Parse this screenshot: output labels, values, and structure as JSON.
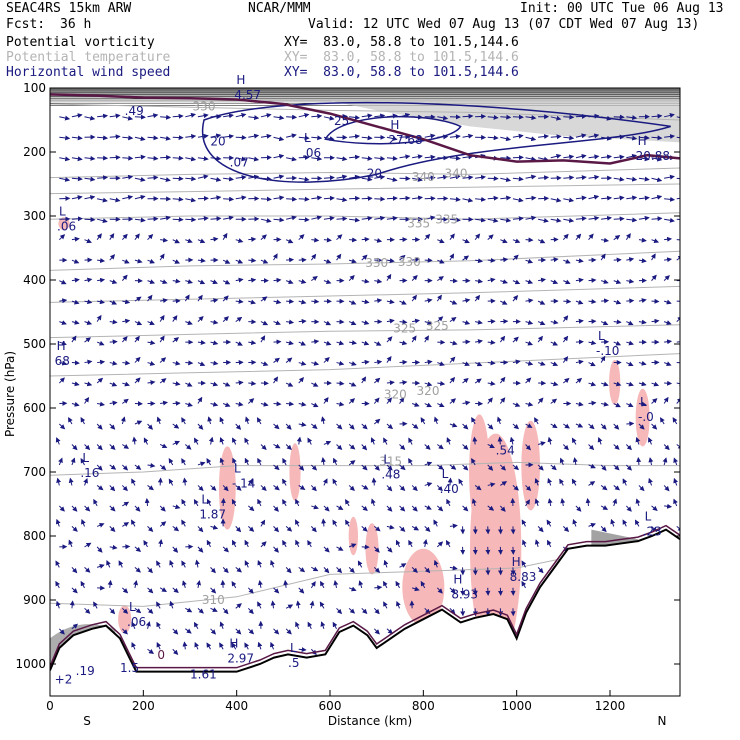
{
  "header": {
    "model": "SEAC4RS 15km ARW",
    "org": "NCAR/MMM",
    "init": "Init: 00 UTC Tue 06 Aug 13",
    "fcst_label": "Fcst:",
    "fcst_value": "36 h",
    "valid": "Valid: 12 UTC Wed 07 Aug 13 (07 CDT Wed 07 Aug 13)"
  },
  "fields": [
    {
      "name": "Potential vorticity",
      "xy": "XY=  83.0, 58.8 to 101.5,144.6",
      "color": "#000000"
    },
    {
      "name": "Potential temperature",
      "xy": "XY=  83.0, 58.8 to 101.5,144.6",
      "color": "#b4b4b4"
    },
    {
      "name": "Horizontal wind speed",
      "xy": "XY=  83.0, 58.8 to 101.5,144.6",
      "color": "#1a1a80"
    }
  ],
  "chart_data": {
    "type": "cross-section",
    "xlabel": "Distance (km)",
    "ylabel": "Pressure (hPa)",
    "xlim": [
      0,
      1350
    ],
    "ylim": [
      1050,
      100
    ],
    "x_ticks": [
      0,
      200,
      400,
      600,
      800,
      1000,
      1200
    ],
    "y_ticks": [
      100,
      200,
      300,
      400,
      500,
      600,
      700,
      800,
      900,
      1000
    ],
    "x_end_labels": [
      "S",
      "N"
    ],
    "theta_contours": [
      {
        "value": "330",
        "x": 330,
        "p": 135
      },
      {
        "value": "340",
        "x": 800,
        "p": 245
      },
      {
        "value": "340",
        "x": 870,
        "p": 240
      },
      {
        "value": "335",
        "x": 790,
        "p": 318
      },
      {
        "value": "335",
        "x": 850,
        "p": 312
      },
      {
        "value": "330",
        "x": 700,
        "p": 380
      },
      {
        "value": "330",
        "x": 770,
        "p": 378
      },
      {
        "value": "325",
        "x": 760,
        "p": 482
      },
      {
        "value": "325",
        "x": 830,
        "p": 478
      },
      {
        "value": "320",
        "x": 740,
        "p": 585
      },
      {
        "value": "320",
        "x": 810,
        "p": 580
      },
      {
        "value": "315",
        "x": 730,
        "p": 690
      },
      {
        "value": "310",
        "x": 350,
        "p": 906
      }
    ],
    "wind_contours": [
      {
        "value": "20",
        "x": 360,
        "p": 190
      },
      {
        "value": "25",
        "x": 625,
        "p": 158
      },
      {
        "value": "20",
        "x": 695,
        "p": 240
      }
    ],
    "extrema": [
      {
        "type": "H",
        "value": "4.57",
        "x": 395,
        "p": 105
      },
      {
        "type": "",
        "value": ".49",
        "x": 160,
        "p": 130
      },
      {
        "type": "L",
        "value": ".06",
        "x": 540,
        "p": 195
      },
      {
        "type": "",
        "value": ".07",
        "x": 385,
        "p": 210
      },
      {
        "type": "H",
        "value": "27.68",
        "x": 725,
        "p": 175
      },
      {
        "type": "H",
        "value": "20.88",
        "x": 1255,
        "p": 200
      },
      {
        "type": "L",
        "value": ".06",
        "x": 15,
        "p": 310
      },
      {
        "type": "H",
        "value": "68",
        "x": 10,
        "p": 520
      },
      {
        "type": "L",
        "value": "-.10",
        "x": 1170,
        "p": 505
      },
      {
        "type": "L",
        "value": "-.0",
        "x": 1260,
        "p": 608
      },
      {
        "type": "",
        "value": ".54",
        "x": 955,
        "p": 660
      },
      {
        "type": "L",
        "value": ".16",
        "x": 65,
        "p": 695
      },
      {
        "type": "L",
        "value": "-.14",
        "x": 390,
        "p": 712
      },
      {
        "type": "L",
        "value": "1.87",
        "x": 320,
        "p": 760
      },
      {
        "type": "L",
        "value": ".48",
        "x": 710,
        "p": 698
      },
      {
        "type": "L",
        "value": ".40",
        "x": 835,
        "p": 720
      },
      {
        "type": "L",
        "value": ".23",
        "x": 1270,
        "p": 787
      },
      {
        "type": "H",
        "value": "8.83",
        "x": 985,
        "p": 858
      },
      {
        "type": "H",
        "value": "8.93",
        "x": 860,
        "p": 885
      },
      {
        "type": "L",
        "value": ".06",
        "x": 165,
        "p": 928
      },
      {
        "type": "",
        "value": "0",
        "x": 230,
        "p": 980
      },
      {
        "type": "H",
        "value": "2.97",
        "x": 380,
        "p": 985
      },
      {
        "type": "L",
        "value": ".5",
        "x": 510,
        "p": 992
      },
      {
        "type": "",
        "value": ".19",
        "x": 55,
        "p": 1005
      },
      {
        "type": "",
        "value": "1.5",
        "x": 150,
        "p": 1000
      },
      {
        "type": "",
        "value": "1.61",
        "x": 300,
        "p": 1010
      },
      {
        "type": "",
        "value": "+2",
        "x": 10,
        "p": 1018
      }
    ],
    "terrain": [
      [
        0,
        1010
      ],
      [
        20,
        975
      ],
      [
        50,
        955
      ],
      [
        90,
        945
      ],
      [
        120,
        940
      ],
      [
        150,
        960
      ],
      [
        170,
        990
      ],
      [
        185,
        1012
      ],
      [
        250,
        1012
      ],
      [
        300,
        1012
      ],
      [
        400,
        1012
      ],
      [
        450,
        1000
      ],
      [
        480,
        990
      ],
      [
        510,
        985
      ],
      [
        550,
        990
      ],
      [
        590,
        985
      ],
      [
        620,
        950
      ],
      [
        650,
        940
      ],
      [
        680,
        955
      ],
      [
        700,
        975
      ],
      [
        730,
        960
      ],
      [
        760,
        945
      ],
      [
        800,
        930
      ],
      [
        840,
        915
      ],
      [
        880,
        935
      ],
      [
        910,
        928
      ],
      [
        950,
        922
      ],
      [
        980,
        930
      ],
      [
        1000,
        960
      ],
      [
        1020,
        920
      ],
      [
        1050,
        880
      ],
      [
        1080,
        850
      ],
      [
        1110,
        820
      ],
      [
        1150,
        815
      ],
      [
        1190,
        815
      ],
      [
        1220,
        812
      ],
      [
        1260,
        808
      ],
      [
        1290,
        800
      ],
      [
        1320,
        790
      ],
      [
        1350,
        805
      ]
    ],
    "pv_tropopause": [
      [
        0,
        110
      ],
      [
        100,
        112
      ],
      [
        200,
        115
      ],
      [
        300,
        116
      ],
      [
        400,
        118
      ],
      [
        500,
        125
      ],
      [
        600,
        140
      ],
      [
        700,
        160
      ],
      [
        800,
        180
      ],
      [
        900,
        205
      ],
      [
        1000,
        215
      ],
      [
        1100,
        213
      ],
      [
        1200,
        218
      ],
      [
        1280,
        205
      ],
      [
        1350,
        210
      ]
    ],
    "pink_regions": [
      {
        "x": 380,
        "p": 725,
        "rx": 18,
        "rp": 65
      },
      {
        "x": 525,
        "p": 700,
        "rx": 12,
        "rp": 45
      },
      {
        "x": 955,
        "p": 820,
        "rx": 55,
        "rp": 180
      },
      {
        "x": 920,
        "p": 700,
        "rx": 22,
        "rp": 90
      },
      {
        "x": 1030,
        "p": 690,
        "rx": 20,
        "rp": 70
      },
      {
        "x": 1210,
        "p": 560,
        "rx": 12,
        "rp": 35
      },
      {
        "x": 1270,
        "p": 615,
        "rx": 15,
        "rp": 45
      },
      {
        "x": 650,
        "p": 800,
        "rx": 10,
        "rp": 30
      },
      {
        "x": 800,
        "p": 880,
        "rx": 45,
        "rp": 60
      },
      {
        "x": 690,
        "p": 820,
        "rx": 14,
        "rp": 40
      },
      {
        "x": 30,
        "p": 312,
        "rx": 12,
        "rp": 10
      },
      {
        "x": 160,
        "p": 930,
        "rx": 14,
        "rp": 22
      }
    ]
  }
}
